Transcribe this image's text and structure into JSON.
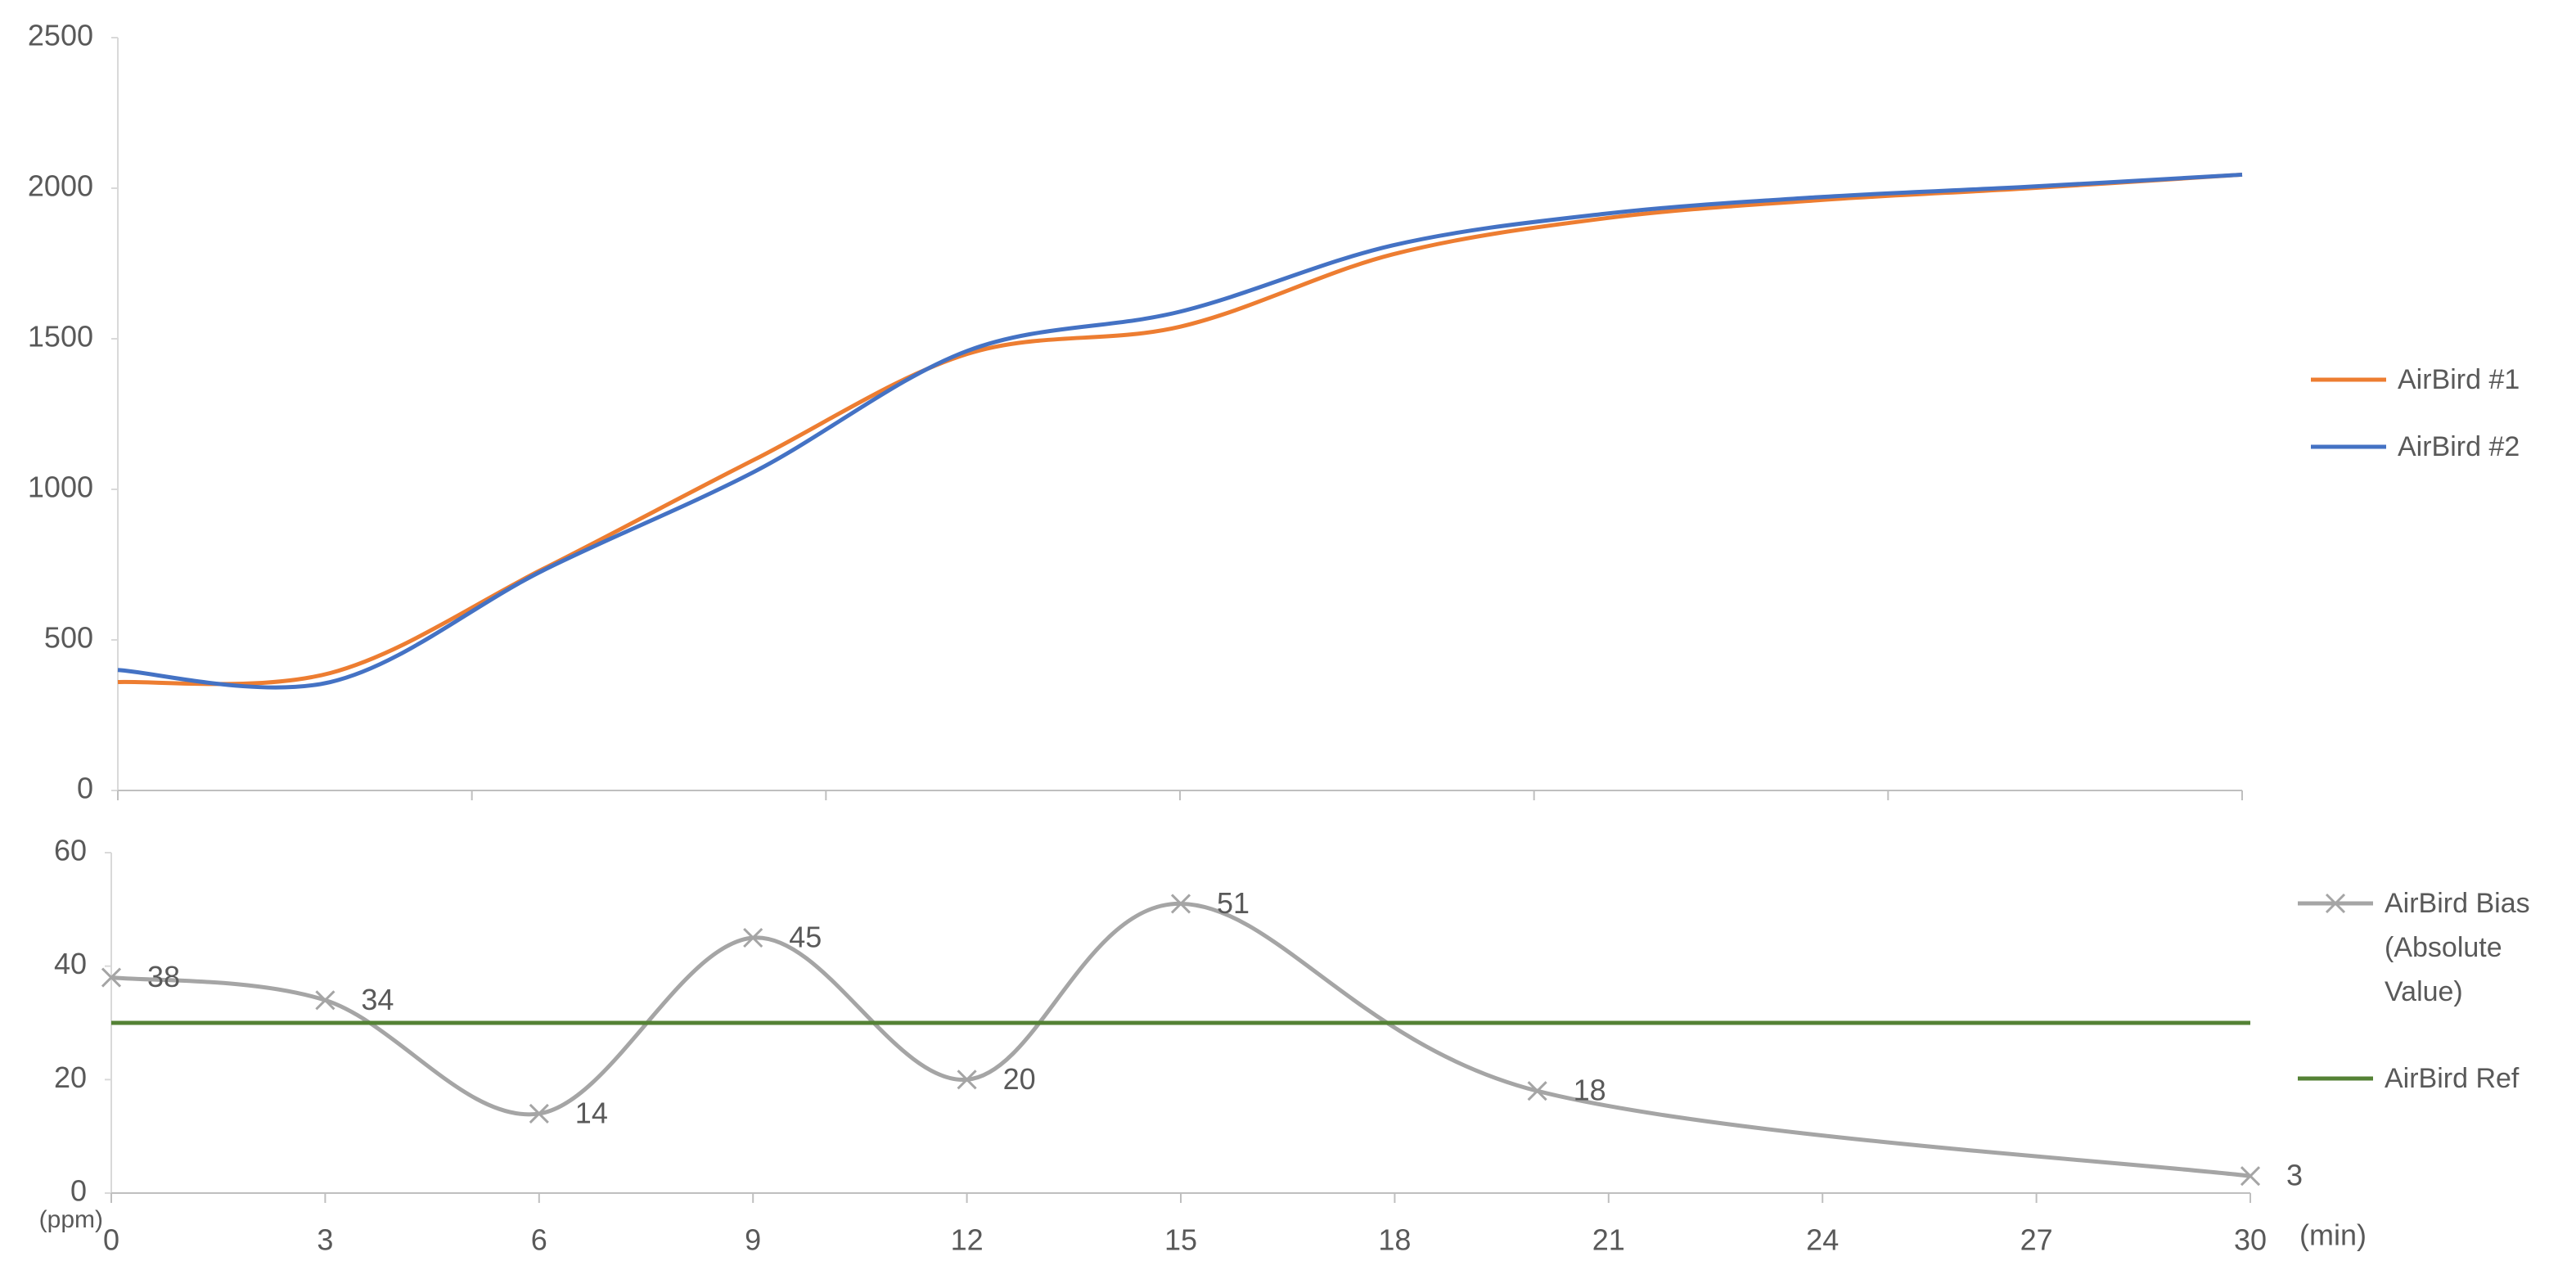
{
  "chart_data": [
    {
      "type": "line",
      "x": [
        0,
        3,
        6,
        9,
        12,
        15,
        18,
        21,
        24,
        27,
        30
      ],
      "series": [
        {
          "name": "AirBird #1",
          "color": "#ED7D31",
          "values": [
            360,
            390,
            735,
            1100,
            1450,
            1540,
            1780,
            1900,
            1960,
            2000,
            2045
          ]
        },
        {
          "name": "AirBird #2",
          "color": "#4472C4",
          "values": [
            400,
            360,
            730,
            1060,
            1460,
            1590,
            1810,
            1915,
            1970,
            2005,
            2045
          ]
        }
      ],
      "xlim": [
        0,
        30
      ],
      "xticks": [
        0,
        5,
        10,
        15,
        20,
        25,
        30
      ],
      "xtick_labels": false,
      "ylim": [
        0,
        2500
      ],
      "yticks": [
        0,
        500,
        1000,
        1500,
        2000,
        2500
      ],
      "smooth": true,
      "legend": "right"
    },
    {
      "type": "line",
      "x": [
        0,
        3,
        6,
        9,
        12,
        15,
        20,
        30
      ],
      "series": [
        {
          "name": "AirBird Bias (Absolute Value)",
          "color": "#A5A5A5",
          "marker": "x",
          "data_labels": true,
          "values": [
            38,
            34,
            14,
            45,
            20,
            51,
            18,
            3
          ]
        },
        {
          "name": "AirBird Ref",
          "color": "#548235",
          "values": [
            30,
            30,
            30,
            30,
            30,
            30,
            30,
            30
          ]
        }
      ],
      "xlim": [
        0,
        30
      ],
      "xticks": [
        0,
        3,
        6,
        9,
        12,
        15,
        18,
        21,
        24,
        27,
        30
      ],
      "xtick_labels": true,
      "ylim": [
        0,
        60
      ],
      "yticks": [
        0,
        20,
        40,
        60
      ],
      "x_label": "(min)",
      "y_label": "(ppm)",
      "smooth": true,
      "legend": "right"
    }
  ]
}
